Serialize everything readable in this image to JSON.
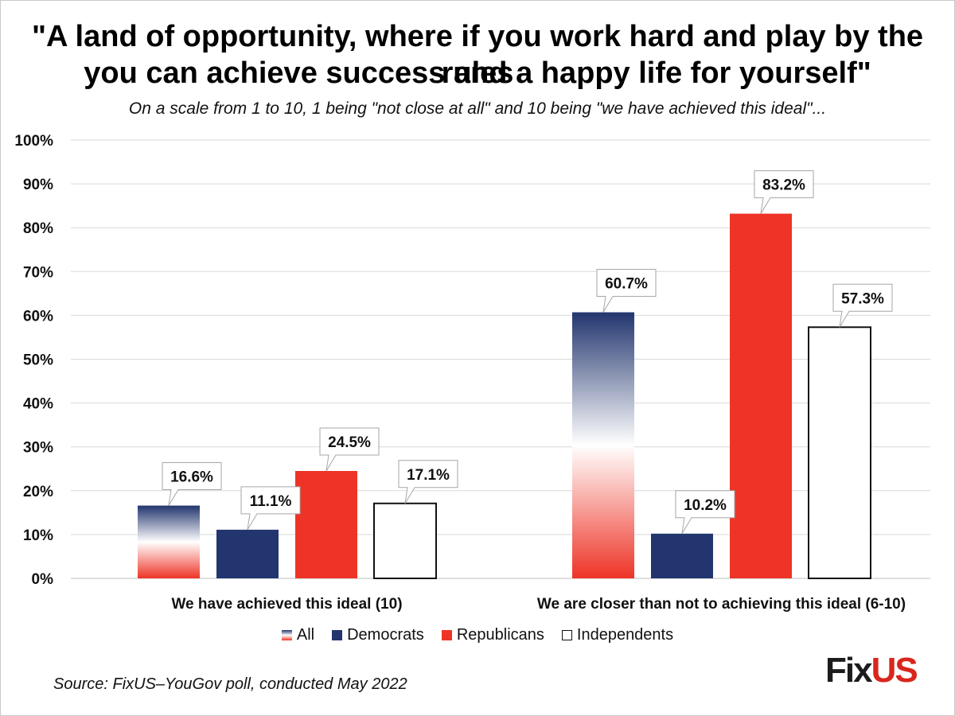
{
  "title_line1": "\"A land of opportunity, where if you work hard and play by the rules",
  "title_line2": "you can achieve success and a happy life for yourself\"",
  "subtitle": "On a scale from 1 to 10, 1 being \"not close at all\" and 10 being \"we have achieved this ideal\"...",
  "source": "Source: FixUS–YouGov poll, conducted May 2022",
  "logo": {
    "part1": "Fix",
    "part2": "US"
  },
  "chart_data": {
    "type": "bar",
    "categories": [
      "We have achieved this ideal (10)",
      "We are closer than not to achieving this ideal (6-10)"
    ],
    "series": [
      {
        "name": "All",
        "values": [
          16.6,
          60.7
        ],
        "labels": [
          "16.6%",
          "60.7%"
        ],
        "style": "gradient"
      },
      {
        "name": "Democrats",
        "values": [
          11.1,
          10.2
        ],
        "labels": [
          "11.1%",
          "10.2%"
        ],
        "color": "#22356e"
      },
      {
        "name": "Republicans",
        "values": [
          24.5,
          83.2
        ],
        "labels": [
          "24.5%",
          "83.2%"
        ],
        "color": "#ee3427"
      },
      {
        "name": "Independents",
        "values": [
          17.1,
          57.3
        ],
        "labels": [
          "17.1%",
          "57.3%"
        ],
        "color": "#ffffff"
      }
    ],
    "ylim": [
      0,
      100
    ],
    "yticks": [
      "0%",
      "10%",
      "20%",
      "30%",
      "40%",
      "50%",
      "60%",
      "70%",
      "80%",
      "90%",
      "100%"
    ],
    "grid": true,
    "legend_position": "bottom",
    "gradient_colors": {
      "top": "#22356e",
      "middle": "#ffffff",
      "bottom": "#ee3427"
    }
  }
}
